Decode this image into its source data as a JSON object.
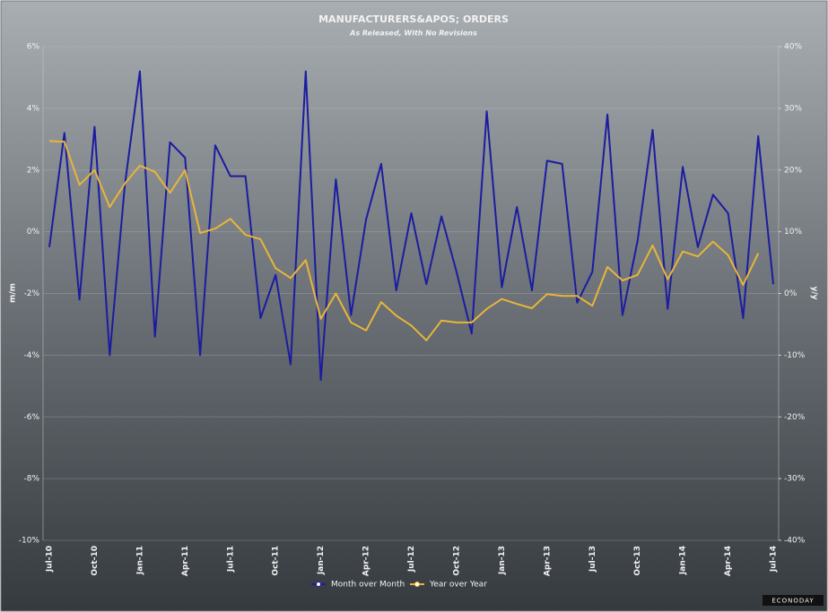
{
  "chart_data": {
    "type": "line",
    "title": "MANUFACTURERS&APOS; ORDERS",
    "subtitle": "As Released, With No Revisions",
    "y_label": "m/m",
    "y2_label": "y/y",
    "logo": "ECONODAY",
    "categories": [
      "Jul-10",
      null,
      null,
      "Oct-10",
      null,
      null,
      "Jan-11",
      null,
      null,
      "Apr-11",
      null,
      null,
      "Jul-11",
      null,
      null,
      "Oct-11",
      null,
      null,
      "Jan-12",
      null,
      null,
      "Apr-12",
      null,
      null,
      "Jul-12",
      null,
      null,
      "Oct-12",
      null,
      null,
      "Jan-13",
      null,
      null,
      "Apr-13",
      null,
      null,
      "Jul-13",
      null,
      null,
      "Oct-13",
      null,
      null,
      "Jan-14",
      null,
      null,
      "Apr-14",
      null,
      null,
      "Jul-14"
    ],
    "series": [
      {
        "name": "Month over Month",
        "color": "#1c1ca0",
        "values": [
          -0.5,
          3.2,
          -2.2,
          3.4,
          -4.0,
          1.5,
          5.2,
          -3.4,
          2.9,
          2.4,
          -4.0,
          2.8,
          1.8,
          1.8,
          -2.8,
          -1.4,
          -4.3,
          5.2,
          -4.8,
          1.7,
          -2.7,
          0.4,
          2.2,
          -1.9,
          0.6,
          -1.7,
          0.5,
          -1.3,
          -3.3,
          3.9,
          -1.8,
          0.8,
          -1.9,
          2.3,
          2.2,
          -2.3,
          -1.3,
          3.8,
          -2.7,
          -0.3,
          3.3,
          -2.5,
          2.1,
          -0.5,
          1.2,
          0.6,
          -2.8,
          3.1,
          -1.7
        ]
      },
      {
        "name": "Year over Year",
        "color": "#e8b53a",
        "axis": "y2",
        "values": [
          24.7,
          24.6,
          17.6,
          20.0,
          14.0,
          17.8,
          20.7,
          19.7,
          16.3,
          20.0,
          9.8,
          10.5,
          12.1,
          9.5,
          8.8,
          4.1,
          2.5,
          5.4,
          -4.1,
          0.0,
          -4.7,
          -6.0,
          -1.4,
          -3.6,
          -5.2,
          -7.6,
          -4.4,
          -4.7,
          -4.7,
          -2.5,
          -0.9,
          -1.7,
          -2.4,
          -0.1,
          -0.4,
          -0.4,
          -2.0,
          4.3,
          2.1,
          3.0,
          7.8,
          2.3,
          6.8,
          6.0,
          8.4,
          6.2,
          1.4,
          6.5,
          null
        ]
      }
    ],
    "ylim": [
      -10,
      6
    ],
    "yticks": [
      {
        "value": -10,
        "label": "-10%"
      },
      {
        "value": -8,
        "label": "-8%"
      },
      {
        "value": -6,
        "label": "-6%"
      },
      {
        "value": -4,
        "label": "-4%"
      },
      {
        "value": -2,
        "label": "-2%"
      },
      {
        "value": 0,
        "label": "0%"
      },
      {
        "value": 2,
        "label": "2%"
      },
      {
        "value": 4,
        "label": "4%"
      },
      {
        "value": 6,
        "label": "6%"
      }
    ],
    "y2lim": [
      -40,
      40
    ],
    "y2ticks": [
      {
        "value": -40,
        "label": "-40%"
      },
      {
        "value": -30,
        "label": "-30%"
      },
      {
        "value": -20,
        "label": "-20%"
      },
      {
        "value": -10,
        "label": "-10%"
      },
      {
        "value": 0,
        "label": "0%"
      },
      {
        "value": 10,
        "label": "10%"
      },
      {
        "value": 20,
        "label": "20%"
      },
      {
        "value": 30,
        "label": "30%"
      },
      {
        "value": 40,
        "label": "40%"
      }
    ],
    "grid": true
  }
}
